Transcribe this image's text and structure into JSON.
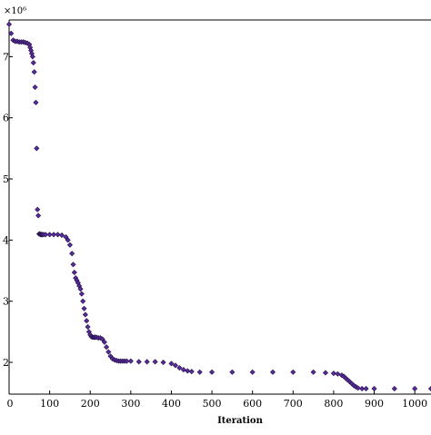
{
  "chart_data": {
    "type": "scatter",
    "title": "",
    "xlabel": "Iteration",
    "ylabel": "",
    "y_scale_label": "×10⁶",
    "xlim": [
      0,
      1040
    ],
    "ylim": [
      1.48,
      7.6
    ],
    "x_ticks": [
      "0",
      "100",
      "200",
      "300",
      "400",
      "500",
      "600",
      "700",
      "800",
      "900",
      "1000"
    ],
    "y_ticks": [
      "2",
      "3",
      "4",
      "5",
      "6",
      "7"
    ],
    "grid": false,
    "legend": "none",
    "marker_color": "#5a2a9e",
    "marker_stroke": "#1f1040",
    "series": [
      {
        "x": [
          0,
          5,
          10,
          15,
          20,
          25,
          30,
          35,
          40,
          45,
          50,
          52,
          54,
          56,
          58,
          60,
          62,
          64,
          66,
          68,
          70,
          72,
          74,
          76,
          78,
          80,
          82,
          85,
          90,
          100,
          110,
          120,
          130,
          140,
          145,
          150,
          155,
          158,
          161,
          164,
          167,
          170,
          173,
          176,
          179,
          182,
          185,
          188,
          191,
          194,
          197,
          200,
          203,
          206,
          209,
          212,
          215,
          220,
          225,
          230,
          235,
          240,
          245,
          250,
          255,
          260,
          265,
          270,
          275,
          280,
          285,
          290,
          300,
          320,
          340,
          360,
          380,
          400,
          410,
          420,
          430,
          440,
          450,
          470,
          500,
          550,
          600,
          650,
          700,
          750,
          780,
          800,
          810,
          820,
          825,
          830,
          835,
          840,
          845,
          850,
          855,
          860,
          870,
          880,
          900,
          950,
          1000,
          1040
        ],
        "y": [
          7.53,
          7.38,
          7.27,
          7.25,
          7.25,
          7.24,
          7.24,
          7.24,
          7.23,
          7.22,
          7.2,
          7.15,
          7.1,
          7.05,
          7.0,
          6.9,
          6.75,
          6.5,
          6.25,
          5.5,
          4.5,
          4.4,
          4.1,
          4.1,
          4.09,
          4.09,
          4.09,
          4.09,
          4.09,
          4.09,
          4.09,
          4.09,
          4.08,
          4.05,
          4.0,
          3.92,
          3.78,
          3.6,
          3.47,
          3.38,
          3.34,
          3.3,
          3.25,
          3.2,
          3.12,
          3.0,
          2.88,
          2.78,
          2.68,
          2.58,
          2.5,
          2.45,
          2.42,
          2.41,
          2.41,
          2.41,
          2.41,
          2.4,
          2.4,
          2.38,
          2.33,
          2.25,
          2.17,
          2.1,
          2.06,
          2.04,
          2.03,
          2.02,
          2.02,
          2.02,
          2.02,
          2.02,
          2.02,
          2.01,
          2.01,
          2.01,
          2.0,
          1.98,
          1.95,
          1.91,
          1.88,
          1.86,
          1.85,
          1.84,
          1.84,
          1.84,
          1.84,
          1.84,
          1.84,
          1.84,
          1.83,
          1.82,
          1.81,
          1.79,
          1.77,
          1.74,
          1.71,
          1.68,
          1.65,
          1.62,
          1.6,
          1.58,
          1.57,
          1.57,
          1.57,
          1.57,
          1.57,
          1.57
        ]
      }
    ]
  }
}
